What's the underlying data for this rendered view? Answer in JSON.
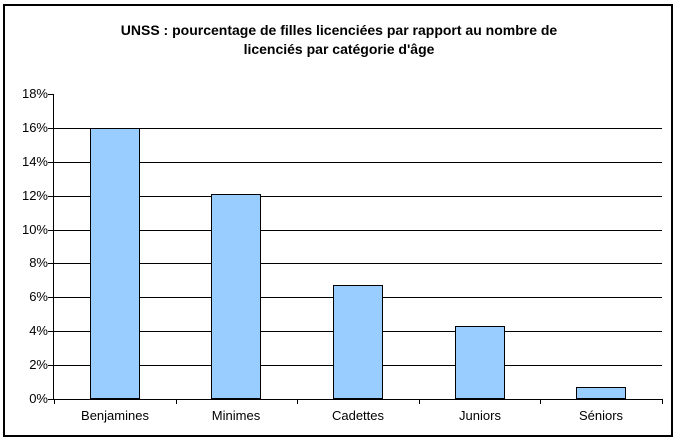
{
  "window": {
    "background": "#ffffff",
    "frame_border_color": "#000000"
  },
  "chart_data": {
    "type": "bar",
    "title": "UNSS : pourcentage de filles licenciées par rapport au nombre de licenciés par catégorie d'âge",
    "title_lines": [
      "UNSS : pourcentage de filles licenciées par rapport au nombre de",
      "licenciés par catégorie d'âge"
    ],
    "categories": [
      "Benjamines",
      "Minimes",
      "Cadettes",
      "Juniors",
      "Séniors"
    ],
    "values": [
      16,
      12.1,
      6.7,
      4.3,
      0.7
    ],
    "unit": "%",
    "xlabel": "",
    "ylabel": "",
    "ylim": [
      0,
      18
    ],
    "ytick_step": 2,
    "ytick_labels": [
      "0%",
      "2%",
      "4%",
      "6%",
      "8%",
      "10%",
      "12%",
      "14%",
      "16%",
      "18%"
    ],
    "grid": true,
    "legend": "none",
    "bar_fill_color": "#99CCFF",
    "bar_border_color": "#000000",
    "gridline_color": "#000000",
    "axis_color": "#000000",
    "text_color": "#000000"
  }
}
